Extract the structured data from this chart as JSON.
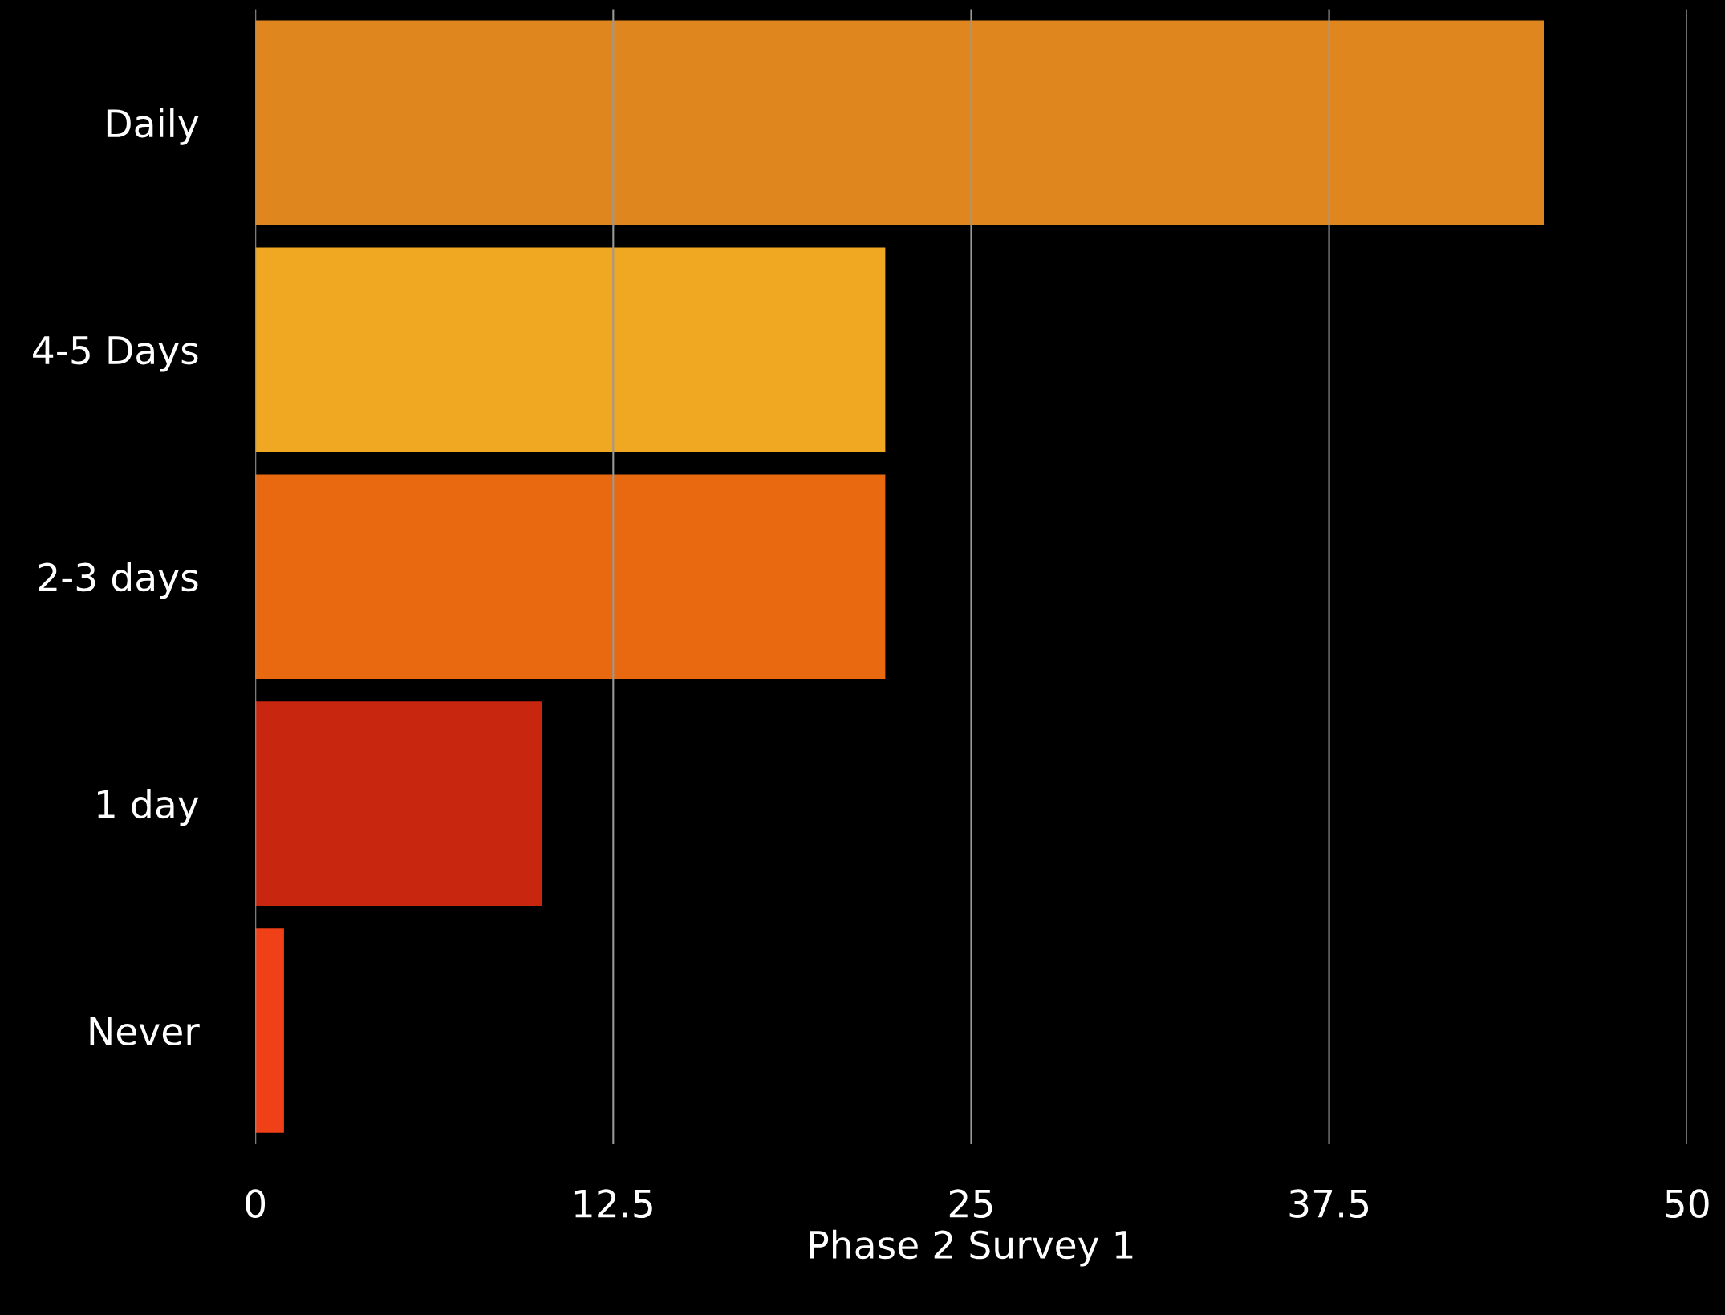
{
  "chart_data": {
    "type": "bar",
    "orientation": "horizontal",
    "xlabel": "Phase 2 Survey 1",
    "categories": [
      "Daily",
      "4-5 Days",
      "2-3 days",
      "1 day",
      "Never"
    ],
    "values": [
      45,
      22,
      22,
      10,
      1
    ],
    "colors": [
      "#e0861e",
      "#f0a822",
      "#e8690f",
      "#c8260f",
      "#f04018"
    ],
    "xlim": [
      0,
      50
    ],
    "xticks": [
      0,
      12.5,
      25,
      37.5,
      50
    ],
    "grid": "x",
    "legend": false
  }
}
